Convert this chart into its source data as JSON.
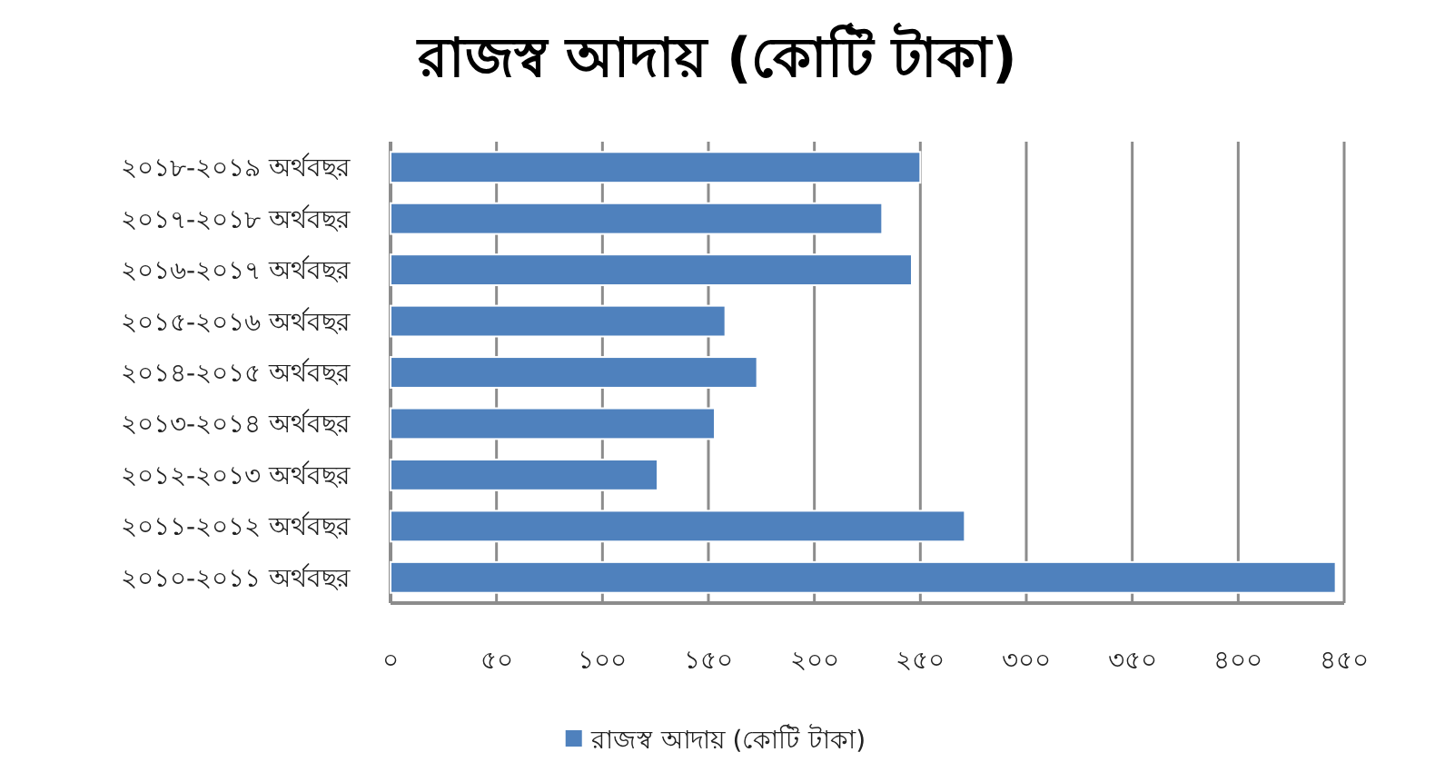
{
  "chart_data": {
    "type": "bar",
    "orientation": "horizontal",
    "title": "রাজস্ব আদায় (কোটি টাকা)",
    "categories": [
      "২০১৮-২০১৯  অর্থবছর",
      "২০১৭-২০১৮  অর্থবছর",
      "২০১৬-২০১৭  অর্থবছর",
      "২০১৫-২০১৬  অর্থবছর",
      "২০১৪-২০১৫  অর্থবছর",
      "২০১৩-২০১৪  অর্থবছর",
      "২০১২-২০১৩  অর্থবছর",
      "২০১১-২০১২  অর্থবছর",
      "২০১০-২০১১  অর্থবছর"
    ],
    "series": [
      {
        "name": "রাজস্ব আদায়  (কোটি  টাকা)",
        "color": "#4f81bd",
        "values": [
          250,
          232,
          246,
          158,
          173,
          153,
          126,
          271,
          446
        ]
      }
    ],
    "xlim": [
      0,
      450
    ],
    "xticks": [
      {
        "value": 0,
        "label": "০"
      },
      {
        "value": 50,
        "label": "৫০"
      },
      {
        "value": 100,
        "label": "১০০"
      },
      {
        "value": 150,
        "label": "১৫০"
      },
      {
        "value": 200,
        "label": "২০০"
      },
      {
        "value": 250,
        "label": "২৫০"
      },
      {
        "value": 300,
        "label": "৩০০"
      },
      {
        "value": 350,
        "label": "৩৫০"
      },
      {
        "value": 400,
        "label": "৪০০"
      },
      {
        "value": 450,
        "label": "৪৫০"
      }
    ],
    "grid": "x",
    "legend": "bottom"
  }
}
